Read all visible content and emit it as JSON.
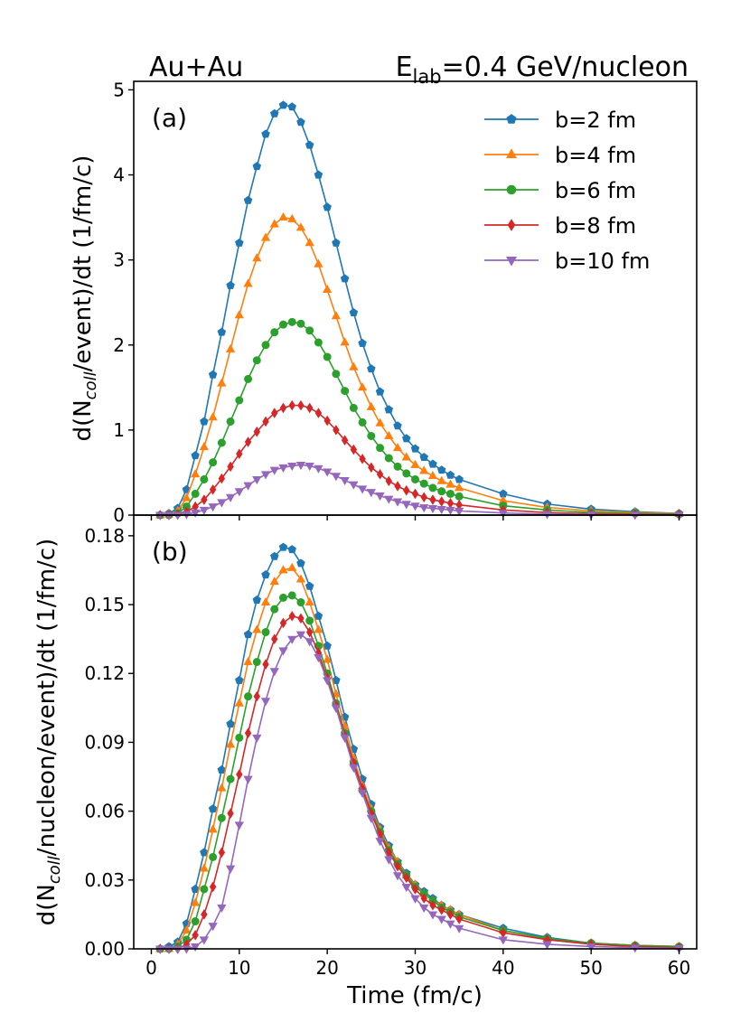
{
  "header": {
    "left": "Au+Au",
    "right_prefix": "E",
    "right_sub": "lab",
    "right_suffix": "=0.4 GeV/nucleon"
  },
  "legend": {
    "placement": "top-right",
    "entries": [
      "b=2 fm",
      "b=4 fm",
      "b=6 fm",
      "b=8 fm",
      "b=10 fm"
    ]
  },
  "series_style": [
    {
      "color": "#1f77b4",
      "marker": "pentagon"
    },
    {
      "color": "#ff7f0e",
      "marker": "triangle-up"
    },
    {
      "color": "#2ca02c",
      "marker": "circle"
    },
    {
      "color": "#d62728",
      "marker": "diamond"
    },
    {
      "color": "#9467bd",
      "marker": "triangle-down"
    }
  ],
  "chart_data": [
    {
      "type": "line",
      "panel_label": "(a)",
      "ylabel": {
        "prefix": "d(N",
        "sub": "coll",
        "suffix": "/event)/dt (1/fm/c)"
      },
      "xlim": [
        -2,
        62
      ],
      "ylim": [
        0,
        5.1
      ],
      "yticks": [
        0,
        1,
        2,
        3,
        4,
        5
      ],
      "ytick_labels": [
        "0",
        "1",
        "2",
        "3",
        "4",
        "5"
      ],
      "x": [
        1,
        2,
        3,
        4,
        5,
        6,
        7,
        8,
        9,
        10,
        11,
        12,
        13,
        14,
        15,
        16,
        17,
        18,
        19,
        20,
        21,
        22,
        23,
        24,
        25,
        26,
        27,
        28,
        29,
        30,
        31,
        32,
        33,
        34,
        35,
        40,
        45,
        50,
        55,
        60
      ],
      "series": [
        {
          "name": "b=2 fm",
          "values": [
            0,
            0.02,
            0.08,
            0.3,
            0.7,
            1.1,
            1.65,
            2.15,
            2.7,
            3.2,
            3.7,
            4.1,
            4.48,
            4.72,
            4.82,
            4.8,
            4.62,
            4.35,
            4.0,
            3.62,
            3.2,
            2.78,
            2.38,
            2.02,
            1.72,
            1.45,
            1.24,
            1.05,
            0.9,
            0.78,
            0.68,
            0.6,
            0.53,
            0.47,
            0.42,
            0.25,
            0.13,
            0.07,
            0.04,
            0.02
          ]
        },
        {
          "name": "b=4 fm",
          "values": [
            0,
            0.01,
            0.05,
            0.2,
            0.48,
            0.8,
            1.15,
            1.55,
            1.95,
            2.35,
            2.72,
            3.02,
            3.26,
            3.42,
            3.5,
            3.48,
            3.38,
            3.2,
            2.95,
            2.65,
            2.34,
            2.03,
            1.74,
            1.5,
            1.27,
            1.08,
            0.93,
            0.79,
            0.68,
            0.59,
            0.52,
            0.46,
            0.4,
            0.36,
            0.32,
            0.17,
            0.09,
            0.05,
            0.03,
            0.015
          ]
        },
        {
          "name": "b=6 fm",
          "values": [
            0,
            0,
            0.02,
            0.1,
            0.25,
            0.42,
            0.62,
            0.85,
            1.1,
            1.35,
            1.6,
            1.82,
            2.0,
            2.15,
            2.24,
            2.27,
            2.25,
            2.17,
            2.03,
            1.86,
            1.66,
            1.46,
            1.26,
            1.09,
            0.93,
            0.79,
            0.67,
            0.57,
            0.49,
            0.42,
            0.37,
            0.32,
            0.28,
            0.25,
            0.22,
            0.11,
            0.06,
            0.03,
            0.02,
            0.01
          ]
        },
        {
          "name": "b=8 fm",
          "values": [
            0,
            0,
            0.01,
            0.04,
            0.1,
            0.18,
            0.3,
            0.43,
            0.57,
            0.72,
            0.86,
            0.98,
            1.1,
            1.2,
            1.26,
            1.29,
            1.29,
            1.26,
            1.2,
            1.11,
            1.0,
            0.88,
            0.77,
            0.66,
            0.56,
            0.48,
            0.4,
            0.34,
            0.29,
            0.25,
            0.21,
            0.18,
            0.16,
            0.14,
            0.12,
            0.06,
            0.03,
            0.015,
            0.01,
            0.005
          ]
        },
        {
          "name": "b=10 fm",
          "values": [
            0,
            0,
            0,
            0.01,
            0.03,
            0.06,
            0.1,
            0.15,
            0.21,
            0.28,
            0.35,
            0.42,
            0.48,
            0.53,
            0.56,
            0.58,
            0.59,
            0.58,
            0.55,
            0.51,
            0.46,
            0.41,
            0.36,
            0.31,
            0.27,
            0.23,
            0.19,
            0.16,
            0.13,
            0.11,
            0.09,
            0.08,
            0.07,
            0.06,
            0.05,
            0.025,
            0.012,
            0.006,
            0.003,
            0.001
          ]
        }
      ]
    },
    {
      "type": "line",
      "panel_label": "(b)",
      "xlabel": "Time (fm/c)",
      "ylabel": {
        "prefix": "d(N",
        "sub": "coll",
        "suffix": "/nucleon/event)/dt (1/fm/c)"
      },
      "xlim": [
        -2,
        62
      ],
      "ylim": [
        0,
        0.189
      ],
      "xticks": [
        0,
        10,
        20,
        30,
        40,
        50,
        60
      ],
      "xtick_labels": [
        "0",
        "10",
        "20",
        "30",
        "40",
        "50",
        "60"
      ],
      "yticks": [
        0,
        0.03,
        0.06,
        0.09,
        0.12,
        0.15,
        0.18
      ],
      "ytick_labels": [
        "0.00",
        "0.03",
        "0.06",
        "0.09",
        "0.12",
        "0.15",
        "0.18"
      ],
      "x": [
        1,
        2,
        3,
        4,
        5,
        6,
        7,
        8,
        9,
        10,
        11,
        12,
        13,
        14,
        15,
        16,
        17,
        18,
        19,
        20,
        21,
        22,
        23,
        24,
        25,
        26,
        27,
        28,
        29,
        30,
        31,
        32,
        33,
        34,
        35,
        40,
        45,
        50,
        55,
        60
      ],
      "series": [
        {
          "name": "b=2 fm",
          "values": [
            0,
            0.001,
            0.003,
            0.011,
            0.026,
            0.042,
            0.061,
            0.078,
            0.098,
            0.117,
            0.137,
            0.152,
            0.163,
            0.171,
            0.175,
            0.174,
            0.168,
            0.158,
            0.145,
            0.132,
            0.117,
            0.101,
            0.087,
            0.074,
            0.063,
            0.053,
            0.045,
            0.038,
            0.033,
            0.028,
            0.025,
            0.022,
            0.019,
            0.017,
            0.015,
            0.009,
            0.005,
            0.0025,
            0.0015,
            0.001
          ]
        },
        {
          "name": "b=4 fm",
          "values": [
            0,
            0,
            0.002,
            0.008,
            0.02,
            0.035,
            0.052,
            0.07,
            0.089,
            0.107,
            0.125,
            0.139,
            0.151,
            0.16,
            0.165,
            0.166,
            0.161,
            0.151,
            0.139,
            0.126,
            0.111,
            0.097,
            0.083,
            0.071,
            0.061,
            0.052,
            0.044,
            0.038,
            0.032,
            0.028,
            0.024,
            0.021,
            0.019,
            0.017,
            0.015,
            0.008,
            0.0045,
            0.0025,
            0.0015,
            0.001
          ]
        },
        {
          "name": "b=6 fm",
          "values": [
            0,
            0,
            0.001,
            0.004,
            0.012,
            0.026,
            0.04,
            0.057,
            0.074,
            0.092,
            0.11,
            0.125,
            0.138,
            0.148,
            0.153,
            0.154,
            0.151,
            0.143,
            0.132,
            0.12,
            0.107,
            0.094,
            0.081,
            0.069,
            0.06,
            0.051,
            0.043,
            0.037,
            0.032,
            0.027,
            0.024,
            0.021,
            0.018,
            0.016,
            0.014,
            0.008,
            0.0045,
            0.0025,
            0.0015,
            0.001
          ]
        },
        {
          "name": "b=8 fm",
          "values": [
            0,
            0,
            0,
            0.002,
            0.006,
            0.015,
            0.027,
            0.042,
            0.059,
            0.076,
            0.094,
            0.11,
            0.124,
            0.135,
            0.142,
            0.145,
            0.144,
            0.138,
            0.129,
            0.118,
            0.106,
            0.093,
            0.081,
            0.07,
            0.059,
            0.05,
            0.042,
            0.036,
            0.031,
            0.026,
            0.022,
            0.019,
            0.017,
            0.015,
            0.013,
            0.007,
            0.004,
            0.002,
            0.001,
            0.0005
          ]
        },
        {
          "name": "b=10 fm",
          "values": [
            0,
            0,
            0,
            0,
            0.001,
            0.004,
            0.01,
            0.018,
            0.035,
            0.054,
            0.074,
            0.092,
            0.108,
            0.121,
            0.13,
            0.135,
            0.137,
            0.134,
            0.127,
            0.117,
            0.105,
            0.092,
            0.079,
            0.068,
            0.057,
            0.047,
            0.039,
            0.032,
            0.027,
            0.022,
            0.018,
            0.015,
            0.013,
            0.011,
            0.009,
            0.004,
            0.002,
            0.001,
            0.0005,
            0.0002
          ]
        }
      ]
    }
  ]
}
